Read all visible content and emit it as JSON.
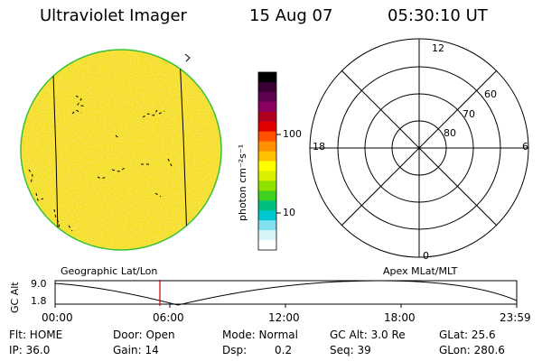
{
  "header": {
    "instrument": "Ultraviolet Imager",
    "date": "15 Aug 07",
    "time": "05:30:10 UT"
  },
  "colorbar": {
    "unit_label": "photon cm⁻²s⁻¹",
    "ticks": [
      "100",
      "10"
    ],
    "colors": [
      "#000000",
      "#3a0033",
      "#600050",
      "#8a0060",
      "#b00020",
      "#e00000",
      "#ff5000",
      "#ff9000",
      "#ffc000",
      "#ffff00",
      "#d8f000",
      "#90e000",
      "#40d020",
      "#00c080",
      "#00c8d0",
      "#80e0f0",
      "#d8f4f8",
      "#ffffff"
    ]
  },
  "geo_map": {
    "label": "Geographic Lat/Lon",
    "disk_color": "#f5df2a",
    "limb_color": "#36c236"
  },
  "polar_plot": {
    "label": "Apex MLat/MLT",
    "mlt_labels": [
      "12",
      "6",
      "0",
      "18"
    ],
    "mlat_labels": [
      "60",
      "70",
      "80"
    ]
  },
  "timeline": {
    "y_axis_label": "GC Alt",
    "y_ticks": [
      "9.0",
      "1.8"
    ],
    "x_ticks": [
      "00:00",
      "06:00",
      "12:00",
      "18:00",
      "23:59"
    ],
    "cursor_color": "#cc0000"
  },
  "status": {
    "flt": "Flt: HOME",
    "ip": "IP: 36.0",
    "door": "Door: Open",
    "gain": "Gain: 14",
    "mode": "Mode: Normal",
    "dsp_label": "Dsp:",
    "dsp_value": "0.2",
    "gc_alt": "GC Alt: 3.0 Re",
    "seq": "Seq: 39",
    "glat": "GLat: 25.6",
    "glon": "GLon: 280.6"
  }
}
